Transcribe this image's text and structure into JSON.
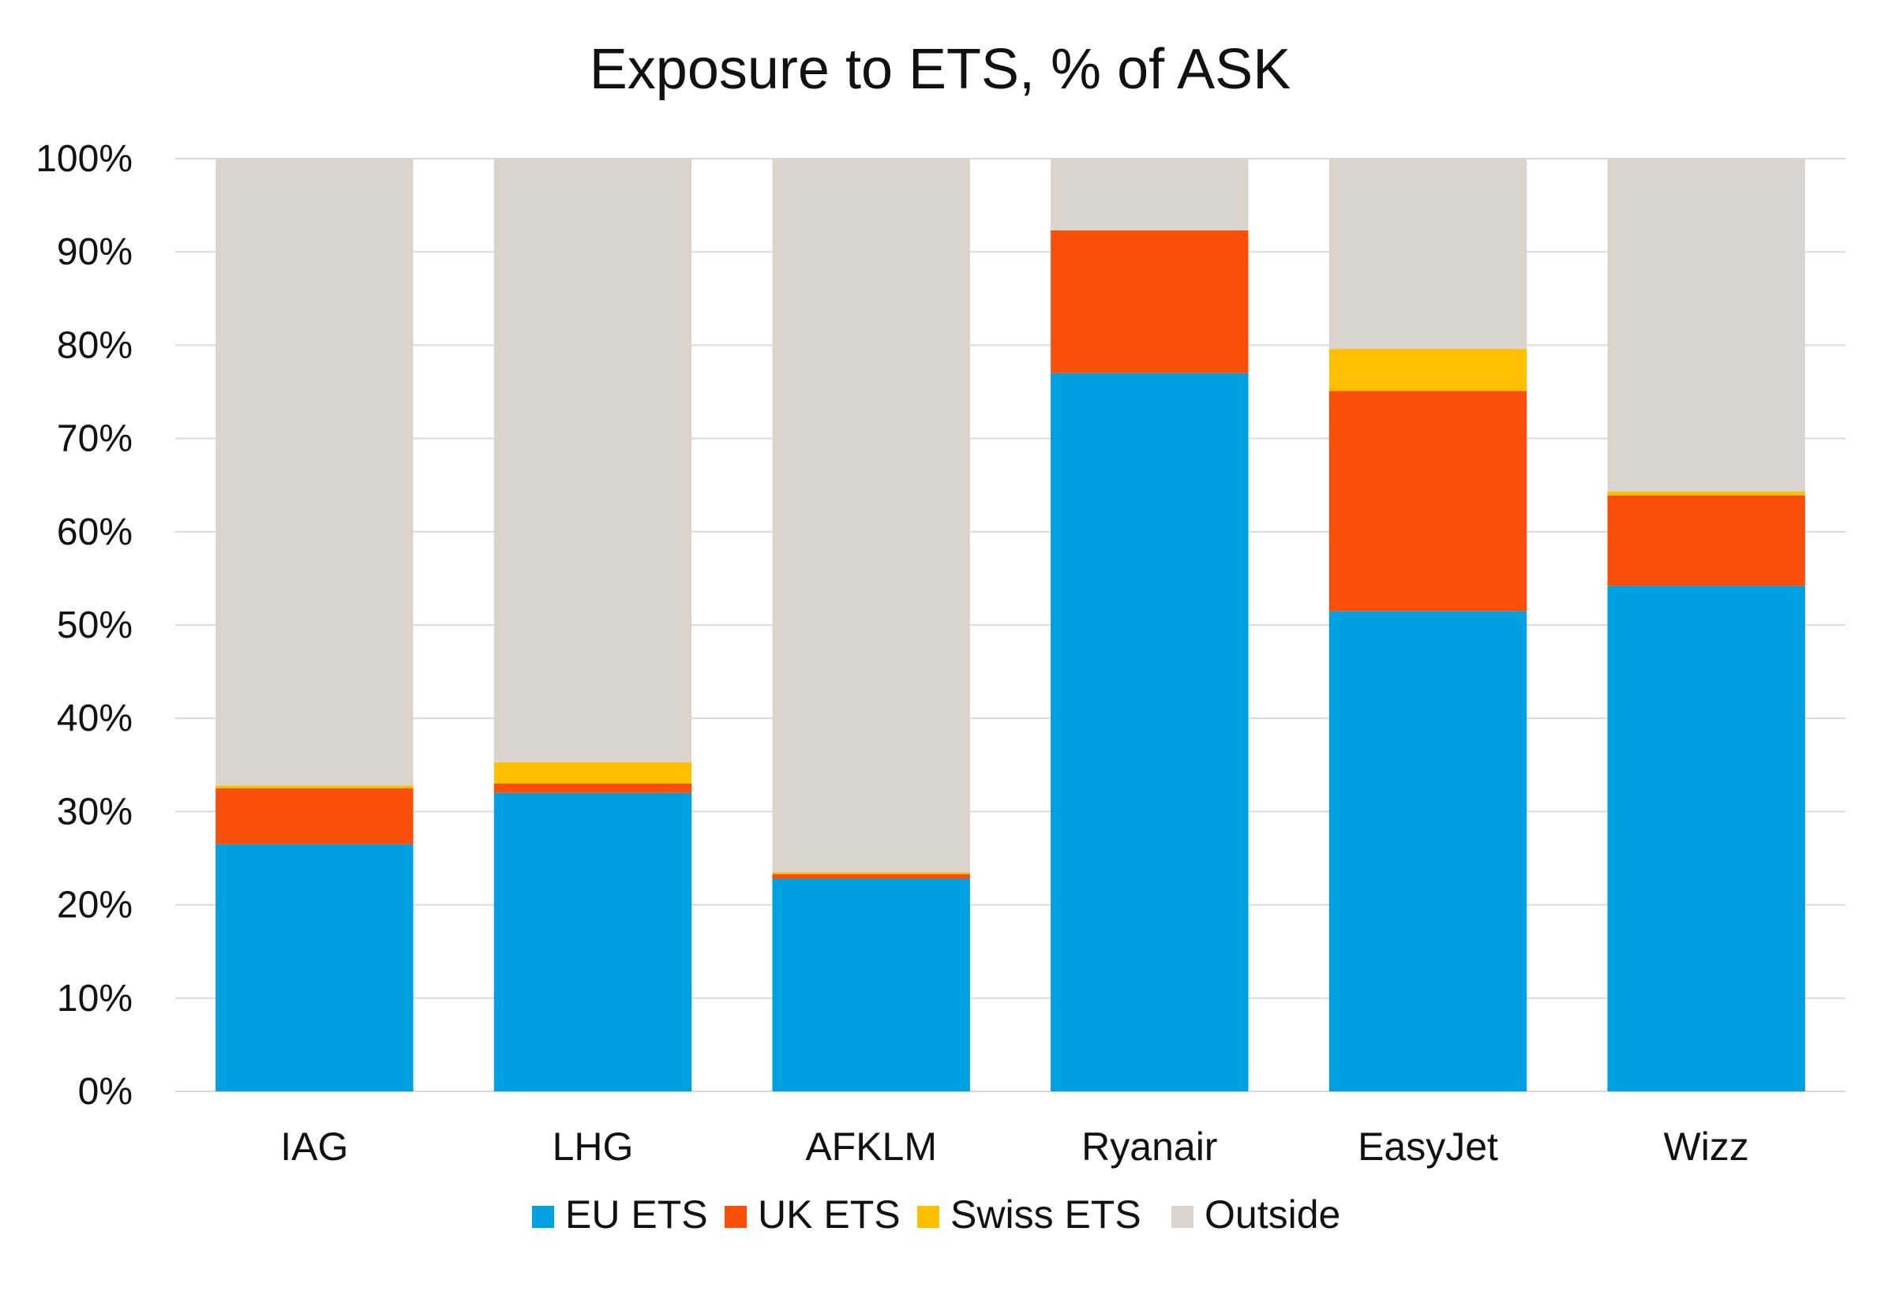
{
  "chart_data": {
    "type": "bar",
    "stacked": true,
    "title": "Exposure to ETS, % of ASK",
    "xlabel": "",
    "ylabel": "",
    "ylim": [
      0,
      100
    ],
    "yticks": [
      "0%",
      "10%",
      "20%",
      "30%",
      "40%",
      "50%",
      "60%",
      "70%",
      "80%",
      "90%",
      "100%"
    ],
    "grid": true,
    "legend_position": "bottom",
    "categories": [
      "IAG",
      "LHG",
      "AFKLM",
      "Ryanair",
      "EasyJet",
      "Wizz"
    ],
    "series": [
      {
        "name": "EU ETS",
        "color": "#009FDF",
        "values": [
          26.5,
          32.0,
          22.8,
          77.0,
          51.5,
          54.2
        ]
      },
      {
        "name": "UK ETS",
        "color": "#FA4F0A",
        "values": [
          6.0,
          1.0,
          0.5,
          15.3,
          23.6,
          9.7
        ]
      },
      {
        "name": "Swiss ETS",
        "color": "#FFC000",
        "values": [
          0.3,
          2.3,
          0.2,
          0.0,
          4.5,
          0.4
        ]
      },
      {
        "name": "Outside",
        "color": "#D9D4CE",
        "values": [
          67.2,
          64.7,
          76.5,
          7.7,
          20.4,
          35.7
        ]
      }
    ]
  }
}
